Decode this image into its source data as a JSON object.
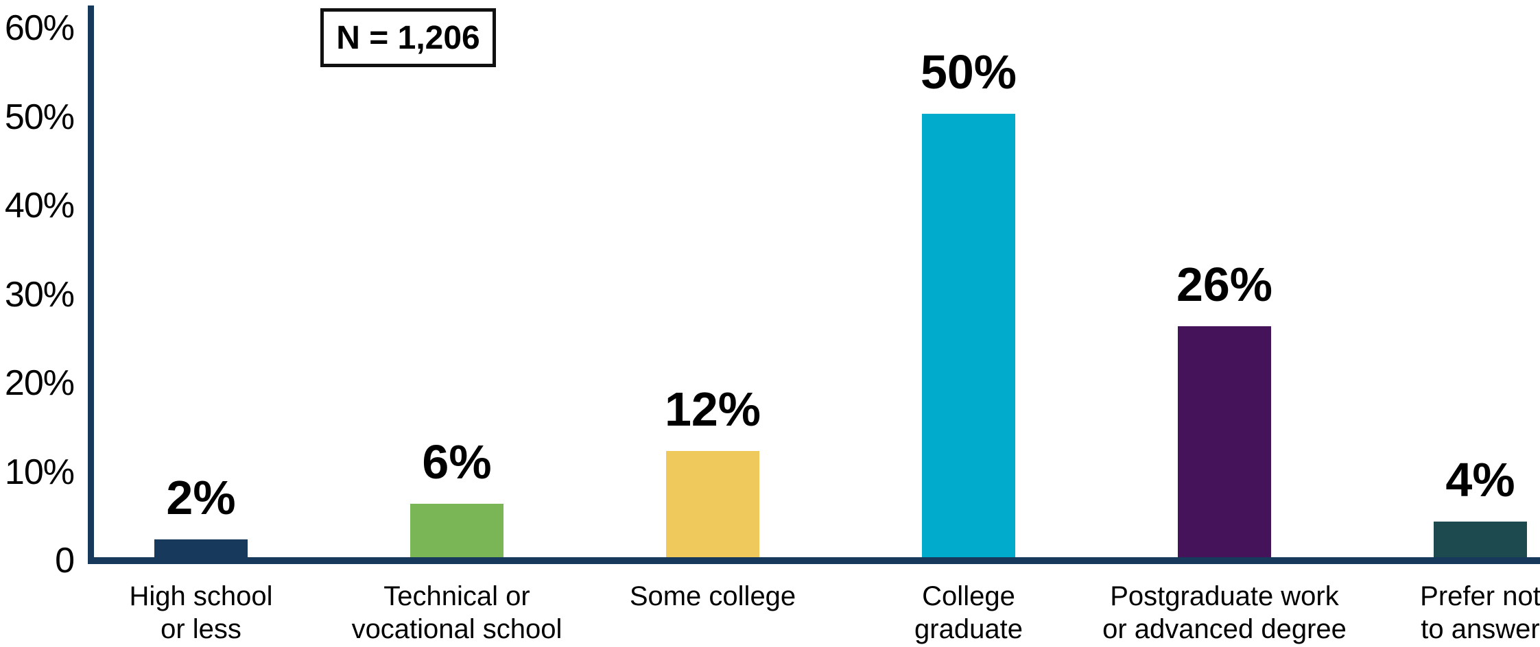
{
  "chart_data": {
    "type": "bar",
    "title": "",
    "xlabel": "",
    "ylabel": "",
    "n_label": "N = 1,206",
    "categories": [
      "High school\nor less",
      "Technical or\nvocational school",
      "Some college",
      "College\ngraduate",
      "Postgraduate work\nor advanced degree",
      "Prefer not\nto answer"
    ],
    "values": [
      2,
      6,
      12,
      50,
      26,
      4
    ],
    "value_labels": [
      "2%",
      "6%",
      "12%",
      "50%",
      "26%",
      "4%"
    ],
    "bar_colors": [
      "#17395C",
      "#7BB656",
      "#F0C95C",
      "#00ABCB",
      "#44135A",
      "#1D4A4F"
    ],
    "y_ticks": [
      "60%",
      "50%",
      "40%",
      "30%",
      "20%",
      "10%",
      "0"
    ],
    "y_tick_values": [
      60,
      50,
      40,
      30,
      20,
      10,
      0
    ],
    "ylim": [
      0,
      62
    ],
    "axis_color": "#17395C",
    "text_color": "#000000",
    "grid": false,
    "legend": "none"
  }
}
